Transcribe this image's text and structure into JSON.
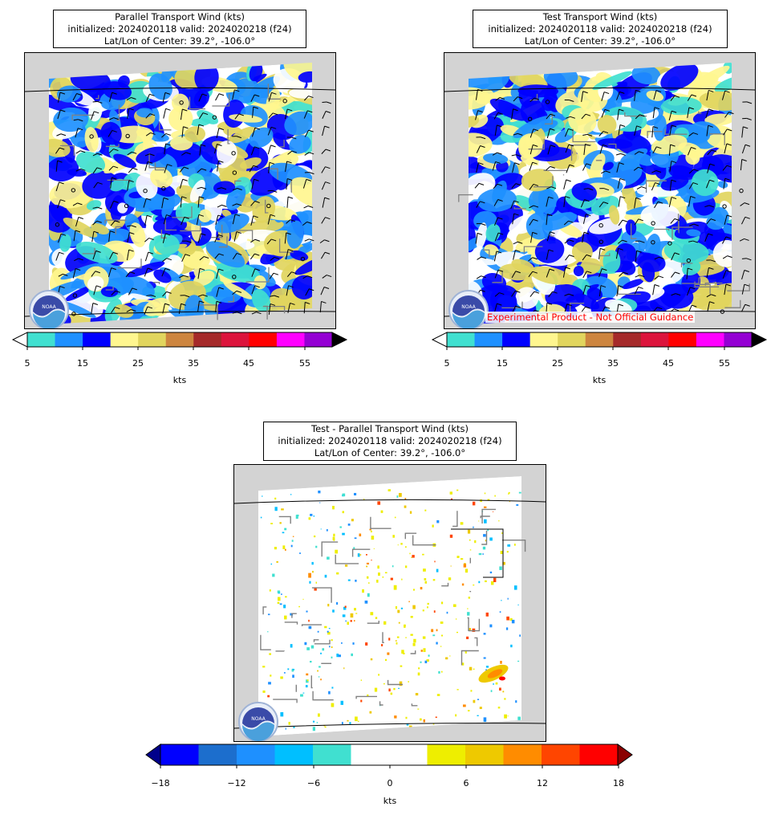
{
  "panels": [
    {
      "id": "parallel",
      "title_lines": [
        "Parallel Transport Wind (kts)",
        "initialized: 2024020118 valid: 2024020218 (f24)",
        "Lat/Lon of Center: 39.2°, -106.0°"
      ],
      "colorbar": {
        "colors": [
          "#40e0d0",
          "#1e90ff",
          "#0000ff",
          "#fff68f",
          "#e1d55e",
          "#cd853f",
          "#a52a2a",
          "#dc143c",
          "#ff0000",
          "#ff00ff",
          "#9400d3"
        ],
        "under_color": "#ffffff",
        "over_color": "#000000",
        "tick_values": [
          "5",
          "15",
          "25",
          "35",
          "45",
          "55"
        ],
        "unit_label": "kts"
      }
    },
    {
      "id": "test",
      "title_lines": [
        "Test Transport Wind (kts)",
        "initialized: 2024020118 valid: 2024020218 (f24)",
        "Lat/Lon of Center: 39.2°, -106.0°"
      ],
      "notice": "Experimental Product - Not Official Guidance",
      "colorbar": {
        "colors": [
          "#40e0d0",
          "#1e90ff",
          "#0000ff",
          "#fff68f",
          "#e1d55e",
          "#cd853f",
          "#a52a2a",
          "#dc143c",
          "#ff0000",
          "#ff00ff",
          "#9400d3"
        ],
        "under_color": "#ffffff",
        "over_color": "#000000",
        "tick_values": [
          "5",
          "15",
          "25",
          "35",
          "45",
          "55"
        ],
        "unit_label": "kts"
      }
    },
    {
      "id": "diff",
      "title_lines": [
        "Test - Parallel Transport Wind (kts)",
        "initialized: 2024020118 valid: 2024020218 (f24)",
        "Lat/Lon of Center: 39.2°, -106.0°"
      ],
      "colorbar": {
        "colors": [
          "#0000ff",
          "#1c6ecd",
          "#1e90ff",
          "#00bfff",
          "#40e0d0",
          "#ffffff",
          "#ffffff",
          "#eeee00",
          "#eec900",
          "#ff8c00",
          "#ff4500",
          "#ff0000"
        ],
        "under_color": "#00008b",
        "over_color": "#8b0000",
        "tick_values": [
          "−18",
          "−12",
          "−6",
          "0",
          "6",
          "12",
          "18"
        ],
        "unit_label": "kts"
      }
    }
  ],
  "logo_text": "NOAA",
  "colors": {
    "land_fill": "#d3d3d3",
    "state_line": "#000000",
    "county_line": "#808080",
    "barb": "#000000"
  }
}
